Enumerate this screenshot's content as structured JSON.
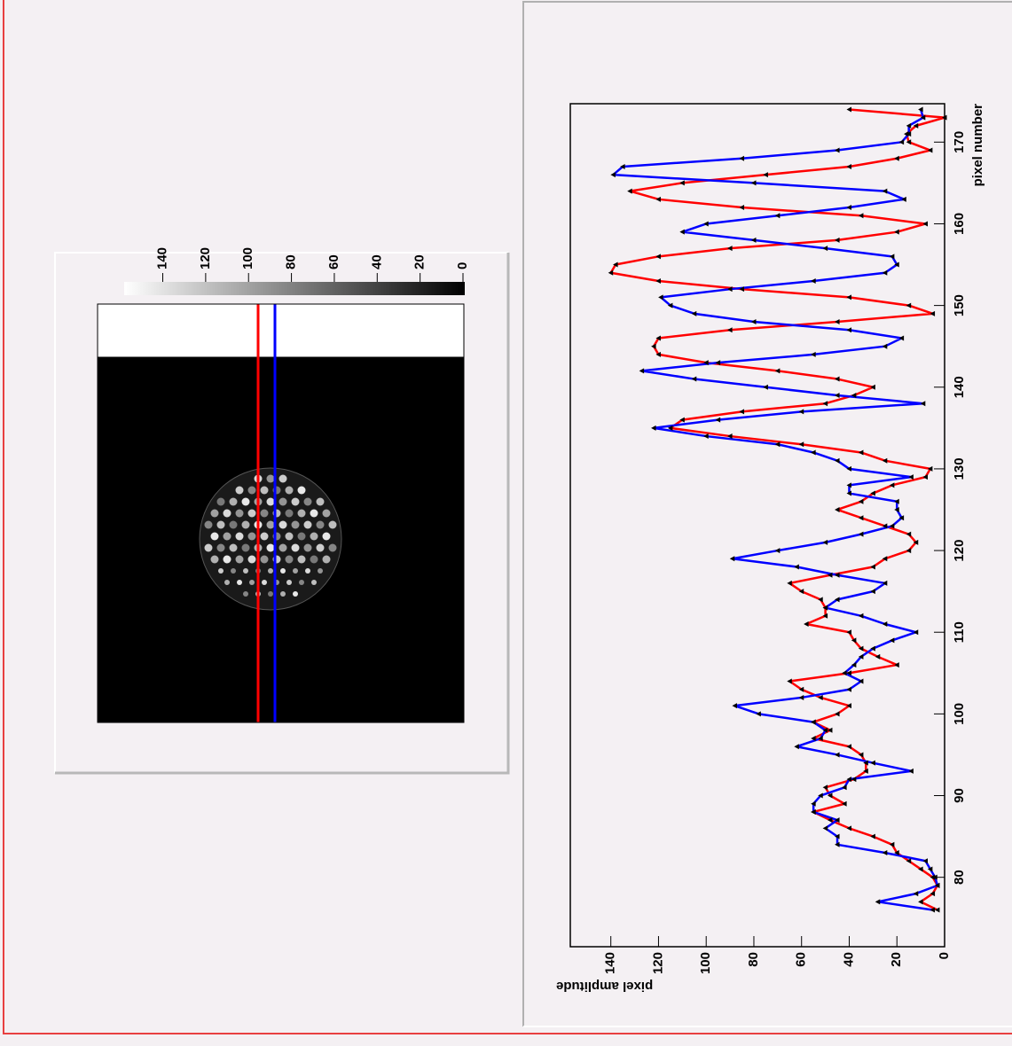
{
  "chart_data": [
    {
      "type": "line",
      "x_label": "pixel number",
      "y_label": "pixel amplitude",
      "x": [
        76,
        77,
        78,
        79,
        80,
        81,
        82,
        83,
        84,
        85,
        86,
        87,
        88,
        89,
        90,
        91,
        92,
        93,
        94,
        95,
        96,
        97,
        98,
        99,
        100,
        101,
        102,
        103,
        104,
        105,
        106,
        107,
        108,
        109,
        110,
        111,
        112,
        113,
        114,
        115,
        116,
        117,
        118,
        119,
        120,
        121,
        122,
        123,
        124,
        125,
        126,
        127,
        128,
        129,
        130,
        131,
        132,
        133,
        134,
        135,
        136,
        137,
        138,
        139,
        140,
        141,
        142,
        143,
        144,
        145,
        146,
        147,
        148,
        149,
        150,
        151,
        152,
        153,
        154,
        155,
        156,
        157,
        158,
        159,
        160,
        161,
        162,
        163,
        164,
        165,
        166,
        167,
        168,
        169,
        170,
        171,
        172,
        173,
        174
      ],
      "series": [
        {
          "color": "#ff0000",
          "values": [
            3,
            10,
            5,
            3,
            5,
            10,
            15,
            20,
            22,
            30,
            40,
            48,
            55,
            42,
            48,
            50,
            38,
            33,
            33,
            35,
            40,
            55,
            48,
            55,
            45,
            40,
            52,
            60,
            65,
            40,
            20,
            28,
            35,
            38,
            40,
            58,
            50,
            50,
            52,
            60,
            65,
            48,
            30,
            25,
            15,
            12,
            15,
            25,
            35,
            45,
            35,
            30,
            22,
            8,
            6,
            25,
            35,
            60,
            90,
            115,
            110,
            85,
            50,
            38,
            30,
            45,
            70,
            100,
            120,
            122,
            120,
            90,
            45,
            5,
            15,
            40,
            85,
            120,
            140,
            138,
            120,
            90,
            45,
            20,
            8,
            35,
            85,
            120,
            132,
            110,
            75,
            40,
            20,
            6,
            15,
            16,
            12,
            0,
            40
          ]
        },
        {
          "color": "#0000ff",
          "values": [
            5,
            28,
            12,
            3,
            4,
            6,
            8,
            25,
            45,
            45,
            50,
            45,
            55,
            55,
            52,
            42,
            40,
            14,
            30,
            45,
            62,
            52,
            50,
            55,
            78,
            88,
            60,
            40,
            35,
            42,
            38,
            35,
            30,
            22,
            12,
            25,
            35,
            50,
            45,
            30,
            25,
            45,
            62,
            89,
            70,
            50,
            35,
            22,
            18,
            20,
            20,
            40,
            40,
            14,
            40,
            45,
            55,
            70,
            100,
            122,
            95,
            60,
            9,
            45,
            75,
            105,
            127,
            95,
            55,
            25,
            18,
            40,
            80,
            105,
            115,
            119,
            90,
            55,
            25,
            20,
            22,
            50,
            80,
            110,
            100,
            70,
            40,
            17,
            25,
            80,
            139,
            135,
            85,
            45,
            18,
            15,
            15,
            9,
            10
          ]
        }
      ],
      "xlim": [
        71.5,
        174.7
      ],
      "xticks": [
        80,
        90,
        100,
        110,
        120,
        130,
        140,
        150,
        160,
        170
      ],
      "ylim": [
        0,
        157
      ],
      "yticks": [
        0,
        20,
        40,
        60,
        80,
        100,
        120,
        140
      ]
    },
    {
      "type": "image",
      "zlim": [
        0,
        158
      ],
      "zticks": [
        0,
        20,
        40,
        60,
        80,
        100,
        120,
        140
      ]
    }
  ]
}
